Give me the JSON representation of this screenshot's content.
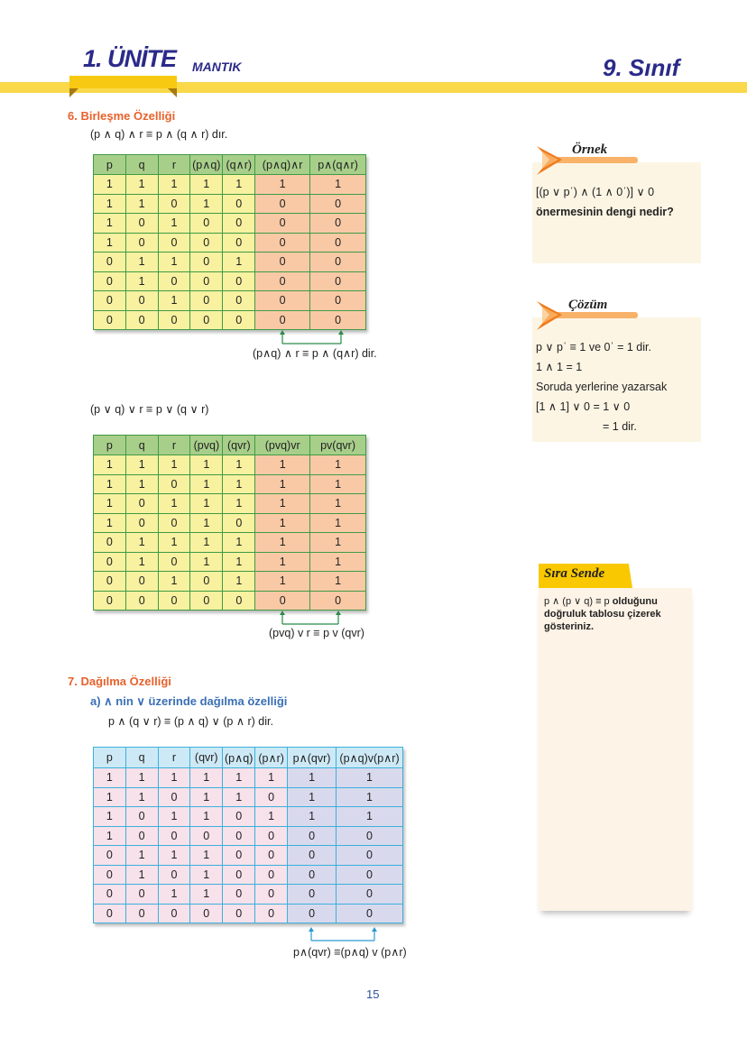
{
  "header": {
    "unit": "1. ÜNİTE",
    "subject": "MANTIK",
    "grade": "9. Sınıf"
  },
  "section6": {
    "title": "6.   Birleşme Özelliği",
    "formula1": "(p ∧ q) ∧ r ≡ p ∧ (q ∧ r)  dır.",
    "table1": {
      "headers": [
        "p",
        "q",
        "r",
        "(p∧q)",
        "(q∧r)",
        "(p∧q)∧r",
        "p∧(q∧r)"
      ],
      "rows": [
        [
          "1",
          "1",
          "1",
          "1",
          "1",
          "1",
          "1"
        ],
        [
          "1",
          "1",
          "0",
          "1",
          "0",
          "0",
          "0"
        ],
        [
          "1",
          "0",
          "1",
          "0",
          "0",
          "0",
          "0"
        ],
        [
          "1",
          "0",
          "0",
          "0",
          "0",
          "0",
          "0"
        ],
        [
          "0",
          "1",
          "1",
          "0",
          "1",
          "0",
          "0"
        ],
        [
          "0",
          "1",
          "0",
          "0",
          "0",
          "0",
          "0"
        ],
        [
          "0",
          "0",
          "1",
          "0",
          "0",
          "0",
          "0"
        ],
        [
          "0",
          "0",
          "0",
          "0",
          "0",
          "0",
          "0"
        ]
      ]
    },
    "caption1": "(p∧q) ∧ r ≡ p ∧ (q∧r) dir.",
    "formula2": "(p ∨ q) ∨ r ≡ p ∨ (q ∨ r)",
    "table2": {
      "headers": [
        "p",
        "q",
        "r",
        "(pvq)",
        "(qvr)",
        "(pvq)vr",
        "pv(qvr)"
      ],
      "rows": [
        [
          "1",
          "1",
          "1",
          "1",
          "1",
          "1",
          "1"
        ],
        [
          "1",
          "1",
          "0",
          "1",
          "1",
          "1",
          "1"
        ],
        [
          "1",
          "0",
          "1",
          "1",
          "1",
          "1",
          "1"
        ],
        [
          "1",
          "0",
          "0",
          "1",
          "0",
          "1",
          "1"
        ],
        [
          "0",
          "1",
          "1",
          "1",
          "1",
          "1",
          "1"
        ],
        [
          "0",
          "1",
          "0",
          "1",
          "1",
          "1",
          "1"
        ],
        [
          "0",
          "0",
          "1",
          "0",
          "1",
          "1",
          "1"
        ],
        [
          "0",
          "0",
          "0",
          "0",
          "0",
          "0",
          "0"
        ]
      ]
    },
    "caption2": "(pvq) v r ≡ p v (qvr)"
  },
  "section7": {
    "title": "7.   Dağılma Özelliği",
    "subtitle": "a)  ∧ nin ∨ üzerinde dağılma özelliği",
    "formula": "p ∧ (q ∨ r) ≡ (p ∧ q) ∨ (p ∧ r)   dir.",
    "table3": {
      "headers": [
        "p",
        "q",
        "r",
        "(qvr)",
        "(p∧q)",
        "(p∧r)",
        "p∧(qvr)",
        "(p∧q)v(p∧r)"
      ],
      "rows": [
        [
          "1",
          "1",
          "1",
          "1",
          "1",
          "1",
          "1",
          "1"
        ],
        [
          "1",
          "1",
          "0",
          "1",
          "1",
          "0",
          "1",
          "1"
        ],
        [
          "1",
          "0",
          "1",
          "1",
          "0",
          "1",
          "1",
          "1"
        ],
        [
          "1",
          "0",
          "0",
          "0",
          "0",
          "0",
          "0",
          "0"
        ],
        [
          "0",
          "1",
          "1",
          "1",
          "0",
          "0",
          "0",
          "0"
        ],
        [
          "0",
          "1",
          "0",
          "1",
          "0",
          "0",
          "0",
          "0"
        ],
        [
          "0",
          "0",
          "1",
          "1",
          "0",
          "0",
          "0",
          "0"
        ],
        [
          "0",
          "0",
          "0",
          "0",
          "0",
          "0",
          "0",
          "0"
        ]
      ]
    },
    "caption": "p∧(qvr) ≡(p∧q) v (p∧r)"
  },
  "ornek": {
    "title": "Örnek",
    "line1": "[(p ∨ pˈ) ∧ (1 ∧ 0ˈ)] ∨ 0",
    "line2": "önermesinin dengi nedir?"
  },
  "cozum": {
    "title": "Çözüm",
    "lines": [
      "p ∨ pˈ ≡ 1   ve   0ˈ = 1   dir.",
      "1 ∧ 1 = 1",
      "Soruda yerlerine yazarsak",
      "[1 ∧ 1] ∨ 0 = 1 ∨ 0",
      "= 1   dir."
    ]
  },
  "sira": {
    "title": "Sıra Sende",
    "formula": "p ∧ (p ∨ q) ≡ p",
    "text1": " olduğunu",
    "text2": "doğruluk tablosu çizerek",
    "text3": "gösteriniz."
  },
  "page_number": "15",
  "colors": {
    "navy": "#2b2a8a",
    "orange": "#e8612c",
    "yellow": "#f9d84a",
    "green_border": "#3f9a45",
    "blue_border": "#3bb0dc"
  }
}
